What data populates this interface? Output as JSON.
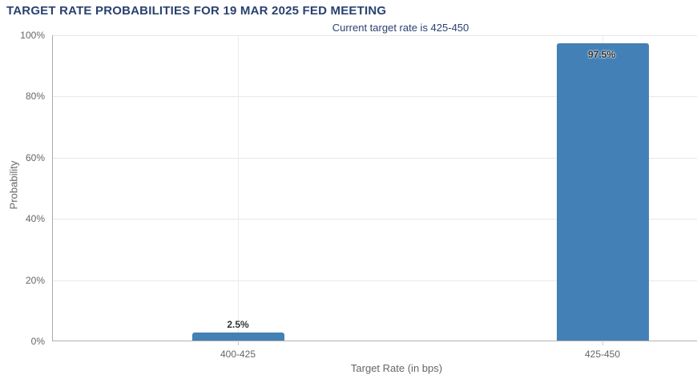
{
  "header": {
    "title": "TARGET RATE PROBABILITIES FOR 19 MAR 2025 FED MEETING",
    "subtitle": "Current target rate is 425-450"
  },
  "chart_data": {
    "type": "bar",
    "title": "TARGET RATE PROBABILITIES FOR 19 MAR 2025 FED MEETING",
    "subtitle": "Current target rate is 425-450",
    "categories": [
      "400-425",
      "425-450"
    ],
    "values": [
      2.5,
      97.5
    ],
    "value_labels": [
      "2.5%",
      "97.5%"
    ],
    "xlabel": "Target Rate (in bps)",
    "ylabel": "Probability",
    "ylim": [
      0,
      100
    ],
    "yticks": [
      "0%",
      "20%",
      "40%",
      "60%",
      "80%",
      "100%"
    ],
    "grid": true,
    "legend": "none",
    "colors": {
      "bar": "#4380b5",
      "title_text": "#2a4270",
      "axis_text": "#666666",
      "gridline": "#e8e8e8",
      "axis_line": "#b0b0b0",
      "background": "#ffffff"
    }
  }
}
